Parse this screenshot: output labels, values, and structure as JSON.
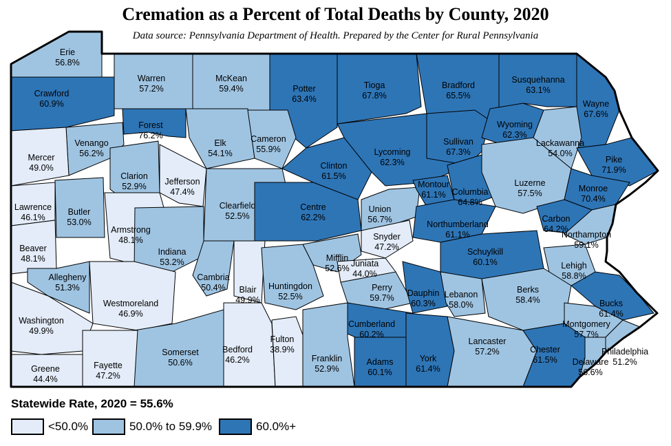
{
  "title": "Cremation as a Percent of Total Deaths by County, 2020",
  "subtitle": "Data source: Pennsylvania Department of Health.  Prepared by the Center for Rural Pennsylvania",
  "statewide": "Statewide Rate, 2020 = 55.6%",
  "legend": [
    {
      "label": "<50.0%",
      "color": "#e3ecf8"
    },
    {
      "label": "50.0% to 59.9%",
      "color": "#9fc4e2"
    },
    {
      "label": "60.0%+",
      "color": "#2e75b6"
    }
  ],
  "counties": [
    {
      "name": "Erie",
      "value": "56.8%",
      "cls": 1
    },
    {
      "name": "Crawford",
      "value": "60.9%",
      "cls": 2
    },
    {
      "name": "Warren",
      "value": "57.2%",
      "cls": 1
    },
    {
      "name": "McKean",
      "value": "59.4%",
      "cls": 1
    },
    {
      "name": "Potter",
      "value": "63.4%",
      "cls": 2
    },
    {
      "name": "Tioga",
      "value": "67.8%",
      "cls": 2
    },
    {
      "name": "Bradford",
      "value": "65.5%",
      "cls": 2
    },
    {
      "name": "Susquehanna",
      "value": "63.1%",
      "cls": 2
    },
    {
      "name": "Wayne",
      "value": "67.6%",
      "cls": 2
    },
    {
      "name": "Forest",
      "value": "76.2%",
      "cls": 2
    },
    {
      "name": "Venango",
      "value": "56.2%",
      "cls": 1
    },
    {
      "name": "Elk",
      "value": "54.1%",
      "cls": 1
    },
    {
      "name": "Cameron",
      "value": "55.9%",
      "cls": 1
    },
    {
      "name": "Mercer",
      "value": "49.0%",
      "cls": 0
    },
    {
      "name": "Clarion",
      "value": "52.9%",
      "cls": 1
    },
    {
      "name": "Jefferson",
      "value": "47.4%",
      "cls": 0
    },
    {
      "name": "Clinton",
      "value": "61.5%",
      "cls": 2
    },
    {
      "name": "Lycoming",
      "value": "62.3%",
      "cls": 2
    },
    {
      "name": "Sullivan",
      "value": "67.3%",
      "cls": 2
    },
    {
      "name": "Wyoming",
      "value": "62.3%",
      "cls": 2
    },
    {
      "name": "Lackawanna",
      "value": "54.0%",
      "cls": 1
    },
    {
      "name": "Pike",
      "value": "71.9%",
      "cls": 2
    },
    {
      "name": "Lawrence",
      "value": "46.1%",
      "cls": 0
    },
    {
      "name": "Butler",
      "value": "53.0%",
      "cls": 1
    },
    {
      "name": "Armstrong",
      "value": "48.1%",
      "cls": 0
    },
    {
      "name": "Clearfield",
      "value": "52.5%",
      "cls": 1
    },
    {
      "name": "Centre",
      "value": "62.2%",
      "cls": 2
    },
    {
      "name": "Union",
      "value": "56.7%",
      "cls": 1
    },
    {
      "name": "Montour",
      "value": "61.1%",
      "cls": 2
    },
    {
      "name": "Columbia",
      "value": "64.8%",
      "cls": 2
    },
    {
      "name": "Luzerne",
      "value": "57.5%",
      "cls": 1
    },
    {
      "name": "Monroe",
      "value": "70.4%",
      "cls": 2
    },
    {
      "name": "Beaver",
      "value": "48.1%",
      "cls": 0
    },
    {
      "name": "Indiana",
      "value": "53.2%",
      "cls": 1
    },
    {
      "name": "Snyder",
      "value": "47.2%",
      "cls": 0
    },
    {
      "name": "Northumberland",
      "value": "61.1%",
      "cls": 2
    },
    {
      "name": "Carbon",
      "value": "64.2%",
      "cls": 2
    },
    {
      "name": "Northampton",
      "value": "59.1%",
      "cls": 1
    },
    {
      "name": "Allegheny",
      "value": "51.3%",
      "cls": 1
    },
    {
      "name": "Westmoreland",
      "value": "46.9%",
      "cls": 0
    },
    {
      "name": "Cambria",
      "value": "50.4%",
      "cls": 1
    },
    {
      "name": "Blair",
      "value": "49.9%",
      "cls": 0
    },
    {
      "name": "Mifflin",
      "value": "52.6%",
      "cls": 1
    },
    {
      "name": "Juniata",
      "value": "44.0%",
      "cls": 0
    },
    {
      "name": "Schuylkill",
      "value": "60.1%",
      "cls": 2
    },
    {
      "name": "Lehigh",
      "value": "58.8%",
      "cls": 1
    },
    {
      "name": "Huntingdon",
      "value": "52.5%",
      "cls": 1
    },
    {
      "name": "Perry",
      "value": "59.7%",
      "cls": 1
    },
    {
      "name": "Dauphin",
      "value": "60.3%",
      "cls": 2
    },
    {
      "name": "Lebanon",
      "value": "58.0%",
      "cls": 1
    },
    {
      "name": "Berks",
      "value": "58.4%",
      "cls": 1
    },
    {
      "name": "Bucks",
      "value": "61.4%",
      "cls": 2
    },
    {
      "name": "Washington",
      "value": "49.9%",
      "cls": 0
    },
    {
      "name": "Cumberland",
      "value": "60.2%",
      "cls": 2
    },
    {
      "name": "Montgomery",
      "value": "57.7%",
      "cls": 1
    },
    {
      "name": "Somerset",
      "value": "50.6%",
      "cls": 1
    },
    {
      "name": "Bedford",
      "value": "46.2%",
      "cls": 0
    },
    {
      "name": "Fulton",
      "value": "38.9%",
      "cls": 0
    },
    {
      "name": "Franklin",
      "value": "52.9%",
      "cls": 1
    },
    {
      "name": "Adams",
      "value": "60.1%",
      "cls": 2
    },
    {
      "name": "York",
      "value": "61.4%",
      "cls": 2
    },
    {
      "name": "Lancaster",
      "value": "57.2%",
      "cls": 1
    },
    {
      "name": "Chester",
      "value": "61.5%",
      "cls": 2
    },
    {
      "name": "Delaware",
      "value": "56.6%",
      "cls": 1
    },
    {
      "name": "Philadelphia",
      "value": "51.2%",
      "cls": 1
    },
    {
      "name": "Greene",
      "value": "44.4%",
      "cls": 0
    },
    {
      "name": "Fayette",
      "value": "47.2%",
      "cls": 0
    }
  ]
}
